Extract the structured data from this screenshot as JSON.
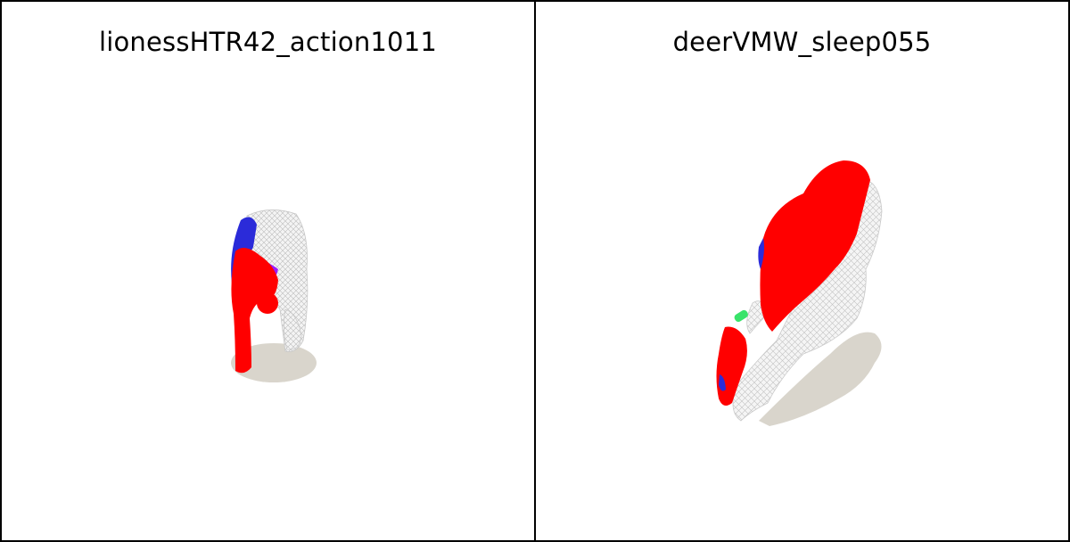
{
  "panels": [
    {
      "title": "lionessHTR42_action1011"
    },
    {
      "title": "deerVMW_sleep055"
    }
  ],
  "colors": {
    "mesh_primary": "#ff0000",
    "mesh_secondary": "#2b2bd9",
    "mesh_tertiary": "#9b1bff",
    "mesh_highlight": "#39e36a",
    "wireframe": "#cfcfcf",
    "shadow": "#d9d5cc",
    "background": "#ffffff"
  }
}
